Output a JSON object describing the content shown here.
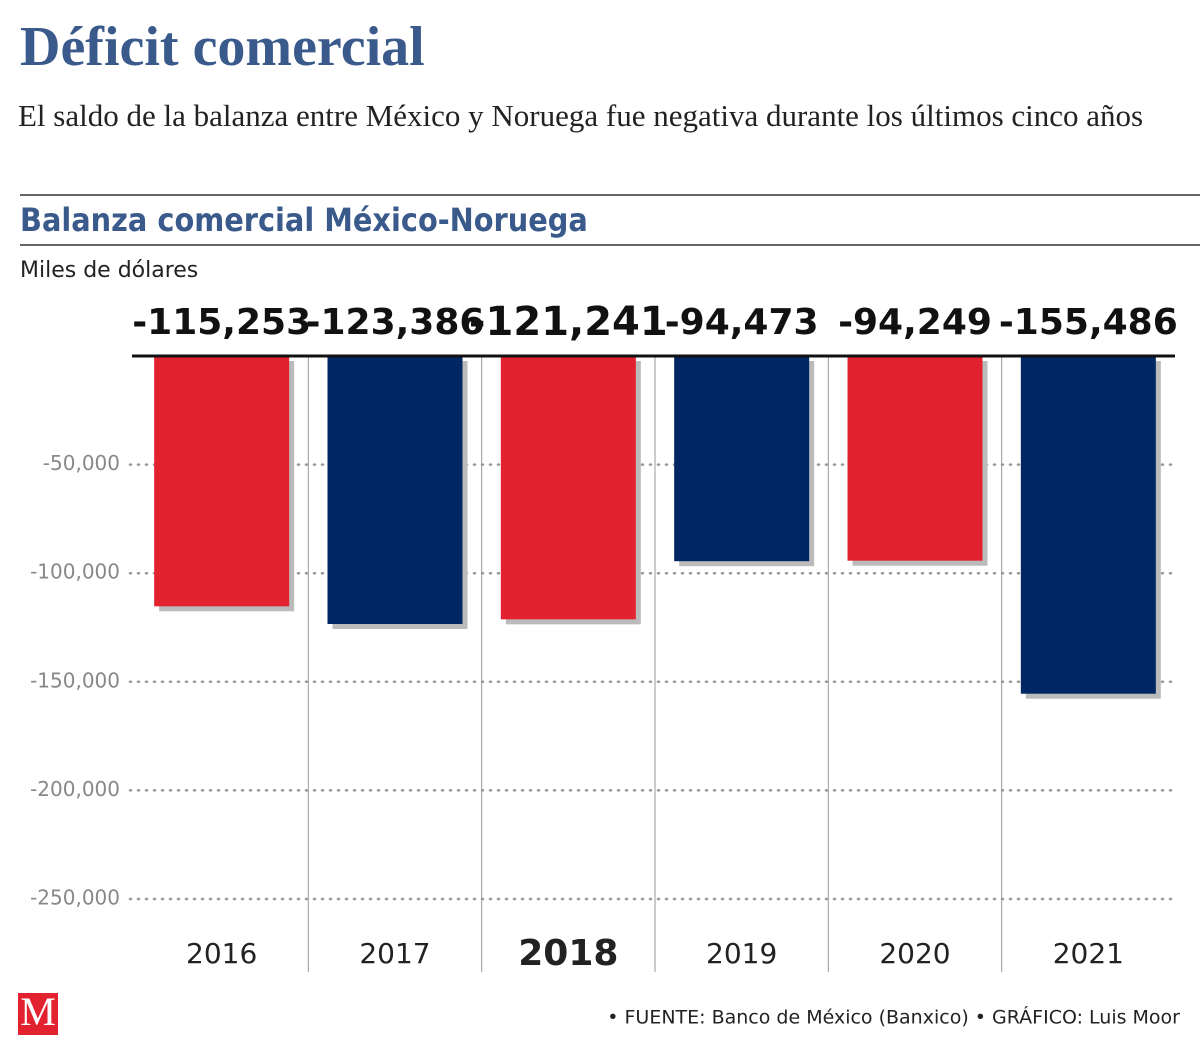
{
  "header": {
    "title": "Déficit comercial",
    "subtitle": "El saldo de la balanza entre México y Noruega fue negativa durante los últimos cinco años"
  },
  "chart_data": {
    "type": "bar",
    "title": "Balanza comercial México-Noruega",
    "y_label": "Miles de dólares",
    "categories": [
      "2016",
      "2017",
      "2018",
      "2019",
      "2020",
      "2021"
    ],
    "values": [
      -115253,
      -123386,
      -121241,
      -94473,
      -94249,
      -155486
    ],
    "value_labels": [
      "-115,253",
      "-123,386",
      "-121,241",
      "-94,473",
      "-94,249",
      "-155,486"
    ],
    "colors": [
      "#e2232f",
      "#002664",
      "#e2232f",
      "#002664",
      "#e2232f",
      "#002664"
    ],
    "highlight": "2018",
    "ylim": [
      -250000,
      0
    ],
    "yticks": [
      {
        "value": -50000,
        "label": "-50,000"
      },
      {
        "value": -100000,
        "label": "-100,000"
      },
      {
        "value": -150000,
        "label": "-150,000"
      },
      {
        "value": -200000,
        "label": "-200,000"
      },
      {
        "value": -250000,
        "label": "-250,000"
      }
    ],
    "grid": true
  },
  "footer": {
    "logo": "M",
    "source": "• FUENTE: Banco de México (Banxico) • GRÁFICO: Luis Moor"
  }
}
